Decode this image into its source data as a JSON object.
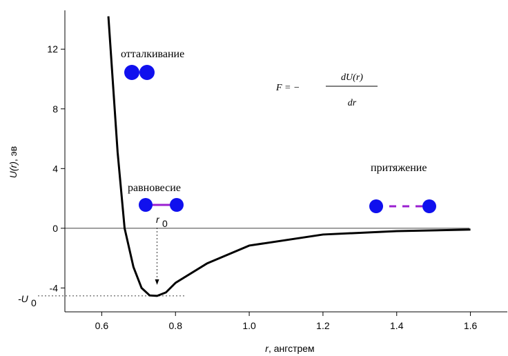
{
  "chart_data": {
    "type": "line",
    "x": [
      0.618,
      0.643,
      0.662,
      0.686,
      0.708,
      0.73,
      0.75,
      0.774,
      0.8,
      0.886,
      1.0,
      1.2,
      1.4,
      1.6
    ],
    "series": [
      {
        "color": "#000000",
        "values": [
          14.2,
          5.1,
          0,
          -2.6,
          -4.0,
          -4.5,
          -4.53,
          -4.3,
          -3.66,
          -2.35,
          -1.16,
          -0.42,
          -0.19,
          -0.09
        ]
      }
    ],
    "xlim": [
      0.5,
      1.7
    ],
    "ylim": [
      -5.6,
      14.6
    ],
    "xticks": [
      0.6,
      0.8,
      {
        "value": 1,
        "label": "1.0"
      },
      1.2,
      1.4,
      1.6
    ],
    "yticks": [
      -4,
      0,
      4,
      8,
      12
    ],
    "xlabel": {
      "var": "r",
      "unit": ", ангстрем"
    },
    "ylabel": {
      "var": "U(r)",
      "unit": ", эв"
    },
    "annotations": {
      "repulsion": "отталкивание",
      "equilibrium": "равновесие",
      "attraction": "притяжение",
      "r0": "r",
      "r0_sub": "0",
      "u0": "-U",
      "u0_sub": "0",
      "formula_left": "F  = −",
      "formula_num": "dU(r)",
      "formula_den": "dr"
    }
  }
}
